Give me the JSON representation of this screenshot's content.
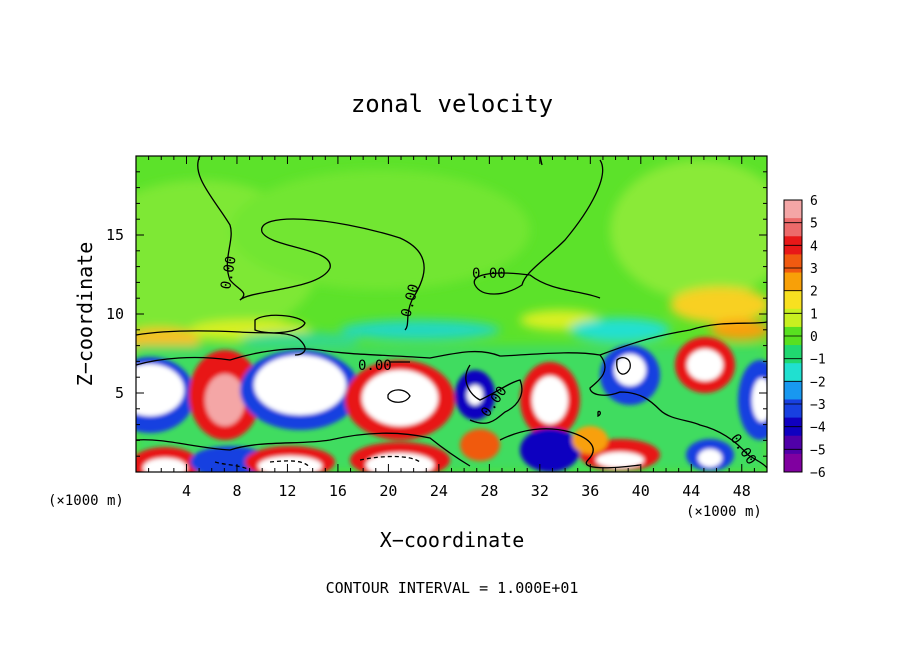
{
  "chart_data": {
    "type": "heatmap",
    "title": "zonal velocity",
    "xlabel": "X−coordinate",
    "ylabel": "Z−coordinate",
    "x_unit_left": "(×1000 m)",
    "x_unit_right": "(×1000 m)",
    "xlim": [
      0,
      50
    ],
    "ylim": [
      0,
      20
    ],
    "xticks": [
      4,
      8,
      12,
      16,
      20,
      24,
      28,
      32,
      36,
      40,
      44,
      48
    ],
    "yticks": [
      5,
      10,
      15
    ],
    "contour_labels": [
      "0.00",
      "0.00",
      "0.00",
      "0.00",
      "0.00",
      "0.00"
    ],
    "footer": "CONTOUR INTERVAL = 1.000E+01",
    "colorbar": {
      "ticks": [
        "6",
        "5",
        "4",
        "3",
        "2",
        "1",
        "0",
        "−1",
        "−2",
        "−3",
        "−4",
        "−5",
        "−6"
      ],
      "colors": [
        "#f4a6a6",
        "#ec6a6a",
        "#e81818",
        "#f05a10",
        "#f8a008",
        "#f8e020",
        "#c8f020",
        "#58e020",
        "#20d870",
        "#20e0d0",
        "#1898f0",
        "#1840e0",
        "#1000c0",
        "#5000a8",
        "#8000a0"
      ]
    }
  }
}
